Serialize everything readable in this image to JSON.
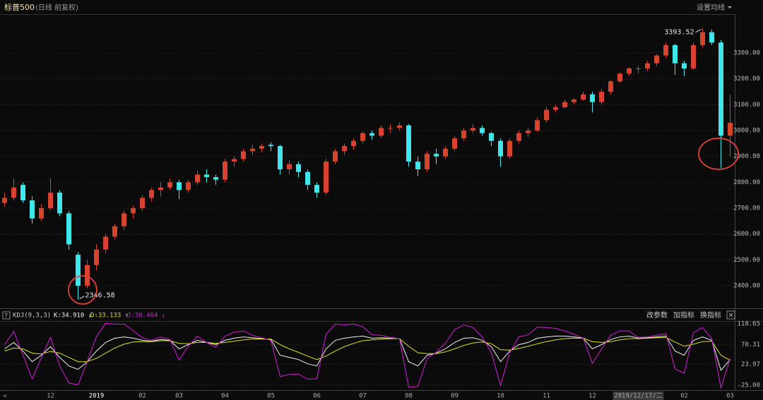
{
  "chart_data": [
    {
      "type": "candlestick",
      "title": "标普500",
      "subtitle": "(日线 前复权)",
      "button": "设置均线",
      "up_color": "#d8432f",
      "down_color": "#3fe6ea",
      "ohlc": [
        [
          2720,
          2760,
          2705,
          2740
        ],
        [
          2740,
          2815,
          2730,
          2780
        ],
        [
          2790,
          2800,
          2720,
          2730
        ],
        [
          2730,
          2745,
          2640,
          2660
        ],
        [
          2660,
          2715,
          2650,
          2700
        ],
        [
          2700,
          2815,
          2690,
          2760
        ],
        [
          2760,
          2770,
          2670,
          2680
        ],
        [
          2680,
          2690,
          2540,
          2560
        ],
        [
          2520,
          2530,
          2346.58,
          2400
        ],
        [
          2400,
          2500,
          2390,
          2480
        ],
        [
          2480,
          2560,
          2460,
          2540
        ],
        [
          2540,
          2600,
          2525,
          2590
        ],
        [
          2590,
          2640,
          2580,
          2630
        ],
        [
          2630,
          2690,
          2615,
          2680
        ],
        [
          2680,
          2710,
          2660,
          2700
        ],
        [
          2700,
          2750,
          2690,
          2740
        ],
        [
          2740,
          2780,
          2725,
          2770
        ],
        [
          2770,
          2800,
          2745,
          2780
        ],
        [
          2780,
          2815,
          2770,
          2800
        ],
        [
          2800,
          2810,
          2735,
          2770
        ],
        [
          2770,
          2810,
          2760,
          2800
        ],
        [
          2800,
          2845,
          2790,
          2830
        ],
        [
          2830,
          2850,
          2800,
          2820
        ],
        [
          2820,
          2830,
          2790,
          2810
        ],
        [
          2810,
          2890,
          2800,
          2880
        ],
        [
          2880,
          2900,
          2860,
          2890
        ],
        [
          2890,
          2930,
          2880,
          2920
        ],
        [
          2920,
          2945,
          2905,
          2930
        ],
        [
          2930,
          2950,
          2915,
          2940
        ],
        [
          2945,
          2955,
          2920,
          2940
        ],
        [
          2940,
          2945,
          2830,
          2850
        ],
        [
          2850,
          2885,
          2830,
          2870
        ],
        [
          2870,
          2880,
          2820,
          2840
        ],
        [
          2840,
          2850,
          2770,
          2790
        ],
        [
          2790,
          2800,
          2740,
          2760
        ],
        [
          2760,
          2890,
          2750,
          2880
        ],
        [
          2880,
          2930,
          2870,
          2920
        ],
        [
          2920,
          2950,
          2905,
          2940
        ],
        [
          2940,
          2970,
          2925,
          2960
        ],
        [
          2960,
          2995,
          2950,
          2990
        ],
        [
          2990,
          3000,
          2965,
          2980
        ],
        [
          2980,
          3020,
          2970,
          3010
        ],
        [
          3010,
          3025,
          2990,
          3010
        ],
        [
          3010,
          3030,
          3000,
          3020
        ],
        [
          3020,
          3025,
          2860,
          2880
        ],
        [
          2880,
          2900,
          2825,
          2850
        ],
        [
          2850,
          2920,
          2840,
          2910
        ],
        [
          2910,
          2930,
          2870,
          2900
        ],
        [
          2900,
          2940,
          2890,
          2930
        ],
        [
          2930,
          2980,
          2920,
          2970
        ],
        [
          2970,
          3010,
          2960,
          3000
        ],
        [
          3000,
          3025,
          2990,
          3010
        ],
        [
          3010,
          3020,
          2980,
          2990
        ],
        [
          2990,
          2995,
          2940,
          2960
        ],
        [
          2960,
          2970,
          2860,
          2900
        ],
        [
          2900,
          2970,
          2890,
          2960
        ],
        [
          2960,
          3000,
          2950,
          2990
        ],
        [
          2990,
          3010,
          2975,
          3000
        ],
        [
          3000,
          3050,
          2995,
          3040
        ],
        [
          3040,
          3090,
          3030,
          3080
        ],
        [
          3080,
          3100,
          3070,
          3090
        ],
        [
          3090,
          3120,
          3085,
          3110
        ],
        [
          3110,
          3125,
          3100,
          3120
        ],
        [
          3120,
          3150,
          3115,
          3140
        ],
        [
          3140,
          3150,
          3070,
          3110
        ],
        [
          3110,
          3160,
          3100,
          3150
        ],
        [
          3150,
          3195,
          3140,
          3190
        ],
        [
          3190,
          3225,
          3185,
          3220
        ],
        [
          3220,
          3245,
          3210,
          3240
        ],
        [
          3240,
          3250,
          3220,
          3240
        ],
        [
          3240,
          3270,
          3230,
          3260
        ],
        [
          3260,
          3295,
          3250,
          3290
        ],
        [
          3290,
          3340,
          3280,
          3330
        ],
        [
          3330,
          3335,
          3215,
          3260
        ],
        [
          3260,
          3270,
          3210,
          3240
        ],
        [
          3240,
          3340,
          3235,
          3330
        ],
        [
          3330,
          3393.52,
          3320,
          3380
        ],
        [
          3380,
          3390,
          3330,
          3340
        ],
        [
          3340,
          3350,
          2855,
          2980
        ],
        [
          2980,
          3140,
          2900,
          3030
        ]
      ],
      "max_label": "3393.52",
      "min_label": "2346.58",
      "ylim": [
        2313,
        3450
      ],
      "yticks": [
        {
          "value": 2400,
          "label": "2400.00"
        },
        {
          "value": 2500,
          "label": "2500.00"
        },
        {
          "value": 2600,
          "label": "2600.00"
        },
        {
          "value": 2700,
          "label": "2700.00"
        },
        {
          "value": 2800,
          "label": "2800.00"
        },
        {
          "value": 2900,
          "label": "2900.00"
        },
        {
          "value": 3000,
          "label": "3000.00"
        },
        {
          "value": 3100,
          "label": "3100.00"
        },
        {
          "value": 3200,
          "label": "3200.00"
        },
        {
          "value": 3300,
          "label": "3300.00"
        }
      ],
      "grid": true
    },
    {
      "type": "line",
      "title": "KDJ(9,3,3)",
      "buttons": [
        "改参数",
        "加指标",
        "换指标"
      ],
      "categories": [
        null,
        null,
        null,
        null,
        null,
        "12",
        null,
        null,
        null,
        null,
        "2019",
        null,
        null,
        null,
        null,
        "02",
        null,
        null,
        null,
        "03",
        null,
        null,
        null,
        null,
        "04",
        null,
        null,
        null,
        null,
        "05",
        null,
        null,
        null,
        null,
        "06",
        null,
        null,
        null,
        null,
        "07",
        null,
        null,
        null,
        null,
        "08",
        null,
        null,
        null,
        null,
        "09",
        null,
        null,
        null,
        null,
        "10",
        null,
        null,
        null,
        null,
        "11",
        null,
        null,
        null,
        null,
        "12",
        null,
        null,
        null,
        null,
        "2019/12/17/二",
        null,
        null,
        null,
        null,
        "02",
        null,
        null,
        null,
        null,
        "03"
      ],
      "series": [
        {
          "label": "K:34.910 ↓",
          "color": "#f2f2f2",
          "values": [
            60,
            75,
            55,
            30,
            45,
            65,
            40,
            20,
            12,
            30,
            55,
            75,
            85,
            88,
            85,
            80,
            78,
            82,
            80,
            60,
            70,
            80,
            75,
            70,
            80,
            85,
            88,
            86,
            84,
            82,
            45,
            40,
            35,
            25,
            20,
            60,
            80,
            85,
            88,
            90,
            85,
            86,
            85,
            84,
            30,
            20,
            45,
            50,
            60,
            75,
            85,
            86,
            80,
            65,
            30,
            55,
            70,
            75,
            85,
            88,
            90,
            90,
            88,
            85,
            60,
            70,
            82,
            88,
            90,
            85,
            86,
            88,
            90,
            55,
            45,
            80,
            88,
            80,
            10,
            34.91
          ]
        },
        {
          "label": "D:33.133 ↑",
          "color": "#e2e21c",
          "values": [
            55,
            62,
            60,
            50,
            48,
            54,
            50,
            40,
            30,
            30,
            38,
            50,
            62,
            71,
            76,
            77,
            77,
            79,
            79,
            73,
            72,
            75,
            75,
            73,
            75,
            78,
            81,
            83,
            83,
            83,
            70,
            60,
            52,
            43,
            35,
            43,
            55,
            65,
            73,
            79,
            81,
            83,
            84,
            84,
            66,
            51,
            49,
            49,
            53,
            60,
            68,
            74,
            76,
            72,
            58,
            57,
            61,
            66,
            72,
            77,
            81,
            84,
            85,
            85,
            77,
            75,
            77,
            81,
            84,
            84,
            85,
            86,
            87,
            76,
            66,
            71,
            77,
            78,
            45,
            33.133
          ]
        },
        {
          "label": "J:38.464 ↓",
          "color": "#d21fd6",
          "values": [
            70,
            101,
            45,
            -10,
            39,
            87,
            20,
            -20,
            -24,
            30,
            89,
            120,
            118,
            118,
            103,
            86,
            80,
            88,
            82,
            34,
            66,
            90,
            75,
            64,
            90,
            99,
            102,
            92,
            86,
            80,
            -5,
            0,
            1,
            -11,
            -10,
            94,
            118,
            116,
            118,
            112,
            93,
            92,
            87,
            84,
            -30,
            -28,
            37,
            52,
            74,
            105,
            116,
            110,
            88,
            51,
            -26,
            51,
            88,
            93,
            111,
            110,
            108,
            102,
            94,
            85,
            26,
            60,
            92,
            102,
            102,
            87,
            88,
            92,
            96,
            13,
            3,
            98,
            110,
            84,
            -32,
            38.464
          ]
        }
      ],
      "ylim": [
        -36.6,
        125.3
      ],
      "yticks": [
        118.65,
        70.31,
        23.97,
        {
          "value": -25,
          "label": "-25.00"
        }
      ],
      "grid": true
    }
  ]
}
